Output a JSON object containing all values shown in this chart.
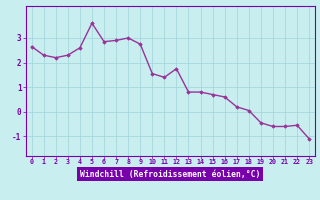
{
  "x": [
    0,
    1,
    2,
    3,
    4,
    5,
    6,
    7,
    8,
    9,
    10,
    11,
    12,
    13,
    14,
    15,
    16,
    17,
    18,
    19,
    20,
    21,
    22,
    23
  ],
  "y": [
    2.65,
    2.3,
    2.2,
    2.3,
    2.6,
    3.6,
    2.85,
    2.9,
    3.0,
    2.75,
    1.55,
    1.4,
    1.75,
    0.8,
    0.8,
    0.7,
    0.6,
    0.2,
    0.05,
    -0.45,
    -0.6,
    -0.6,
    -0.55,
    -1.1
  ],
  "line_color": "#993399",
  "marker": "D",
  "marker_size": 1.8,
  "linewidth": 1.0,
  "background_color": "#c8eef0",
  "plot_bg_color": "#c8eef0",
  "grid_color": "#9ed4d8",
  "xlabel": "Windchill (Refroidissement éolien,°C)",
  "xlabel_color": "#7700aa",
  "xlabel_bg": "#7700aa",
  "tick_color": "#7700aa",
  "axis_color": "#7700aa",
  "ylim": [
    -1.8,
    4.3
  ],
  "yticks": [
    -1,
    0,
    1,
    2,
    3
  ],
  "xlim": [
    -0.5,
    23.5
  ],
  "xticks": [
    0,
    1,
    2,
    3,
    4,
    5,
    6,
    7,
    8,
    9,
    10,
    11,
    12,
    13,
    14,
    15,
    16,
    17,
    18,
    19,
    20,
    21,
    22,
    23
  ],
  "xtick_fontsize": 4.8,
  "ytick_fontsize": 5.5,
  "xlabel_fontsize": 5.8
}
